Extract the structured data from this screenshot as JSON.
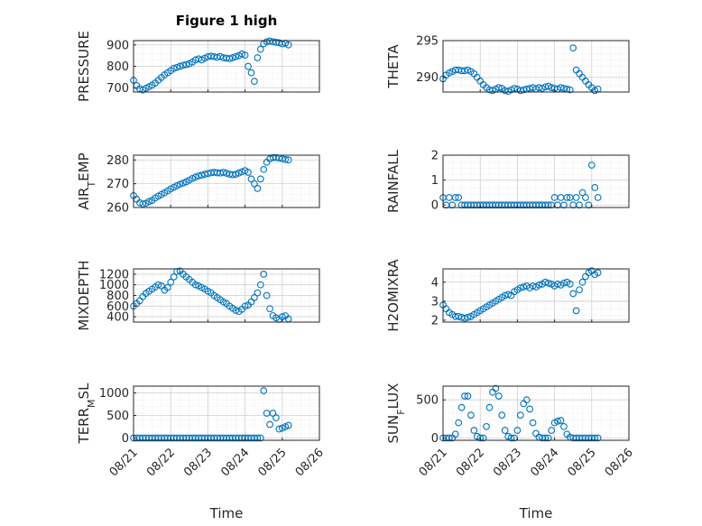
{
  "figure": {
    "title": "Figure 1 high",
    "xlabel": "Time",
    "x_ticks": [
      "08/21",
      "08/22",
      "08/23",
      "08/24",
      "08/25",
      "08/26"
    ]
  },
  "colors": {
    "marker": "#0072BD",
    "axis": "#262626",
    "grid": "#d9d9d9",
    "background": "#ffffff"
  },
  "chart_data": [
    {
      "type": "scatter",
      "ylabel_main": "PRESSURE",
      "ylabel_sub": "",
      "ylim": [
        680,
        920
      ],
      "yticks": [
        700,
        800,
        900
      ],
      "xlim": [
        "08/21",
        "08/26"
      ],
      "x": [
        "08/21 00:00",
        "08/21 02:00",
        "08/21 04:00",
        "08/21 06:00",
        "08/21 08:00",
        "08/21 10:00",
        "08/21 12:00",
        "08/21 14:00",
        "08/21 16:00",
        "08/21 18:00",
        "08/21 20:00",
        "08/21 22:00",
        "08/22 00:00",
        "08/22 02:00",
        "08/22 04:00",
        "08/22 06:00",
        "08/22 08:00",
        "08/22 10:00",
        "08/22 12:00",
        "08/22 14:00",
        "08/22 16:00",
        "08/22 18:00",
        "08/22 20:00",
        "08/22 22:00",
        "08/23 00:00",
        "08/23 02:00",
        "08/23 04:00",
        "08/23 06:00",
        "08/23 08:00",
        "08/23 10:00",
        "08/23 12:00",
        "08/23 14:00",
        "08/23 16:00",
        "08/23 18:00",
        "08/23 20:00",
        "08/23 22:00",
        "08/24 00:00",
        "08/24 02:00",
        "08/24 04:00",
        "08/24 06:00",
        "08/24 08:00",
        "08/24 10:00",
        "08/24 12:00",
        "08/24 14:00",
        "08/24 16:00",
        "08/24 18:00",
        "08/24 20:00",
        "08/24 22:00",
        "08/25 00:00",
        "08/25 02:00",
        "08/25 04:00"
      ],
      "y": [
        735,
        710,
        695,
        690,
        698,
        705,
        712,
        722,
        735,
        748,
        760,
        770,
        780,
        790,
        795,
        800,
        805,
        808,
        812,
        820,
        830,
        835,
        830,
        838,
        845,
        848,
        845,
        842,
        846,
        840,
        838,
        836,
        840,
        845,
        850,
        858,
        852,
        800,
        770,
        730,
        840,
        880,
        905,
        915,
        918,
        915,
        912,
        910,
        905,
        908,
        900
      ]
    },
    {
      "type": "scatter",
      "ylabel_main": "THETA",
      "ylabel_sub": "",
      "ylim": [
        288,
        295
      ],
      "yticks": [
        290,
        295
      ],
      "xlim": [
        "08/21",
        "08/26"
      ],
      "x": [
        "08/21 00:00",
        "08/21 02:00",
        "08/21 04:00",
        "08/21 06:00",
        "08/21 08:00",
        "08/21 10:00",
        "08/21 12:00",
        "08/21 14:00",
        "08/21 16:00",
        "08/21 18:00",
        "08/21 20:00",
        "08/21 22:00",
        "08/22 00:00",
        "08/22 02:00",
        "08/22 04:00",
        "08/22 06:00",
        "08/22 08:00",
        "08/22 10:00",
        "08/22 12:00",
        "08/22 14:00",
        "08/22 16:00",
        "08/22 18:00",
        "08/22 20:00",
        "08/22 22:00",
        "08/23 00:00",
        "08/23 02:00",
        "08/23 04:00",
        "08/23 06:00",
        "08/23 08:00",
        "08/23 10:00",
        "08/23 12:00",
        "08/23 14:00",
        "08/23 16:00",
        "08/23 18:00",
        "08/23 20:00",
        "08/23 22:00",
        "08/24 00:00",
        "08/24 02:00",
        "08/24 04:00",
        "08/24 06:00",
        "08/24 08:00",
        "08/24 10:00",
        "08/24 12:00",
        "08/24 14:00",
        "08/24 16:00",
        "08/24 18:00",
        "08/24 20:00",
        "08/24 22:00",
        "08/25 00:00",
        "08/25 02:00",
        "08/25 04:00"
      ],
      "y": [
        289.8,
        290.3,
        290.6,
        290.8,
        291,
        291,
        290.9,
        290.9,
        291,
        290.8,
        290.5,
        290,
        289.5,
        289,
        288.6,
        288.3,
        288.2,
        288.4,
        288.6,
        288.5,
        288.2,
        288.1,
        288.3,
        288.5,
        288.4,
        288.2,
        288.3,
        288.4,
        288.5,
        288.6,
        288.4,
        288.6,
        288.5,
        288.7,
        288.8,
        288.6,
        288.5,
        288.4,
        288.6,
        288.5,
        288.4,
        288.3,
        294,
        291,
        290.5,
        290,
        289.5,
        289,
        288.6,
        288.2,
        288.4
      ]
    },
    {
      "type": "scatter",
      "ylabel_main": "AIR",
      "ylabel_sub": "T",
      "ylabel_rest": "EMP",
      "ylim": [
        260,
        282
      ],
      "yticks": [
        260,
        270,
        280
      ],
      "xlim": [
        "08/21",
        "08/26"
      ],
      "x": [
        "08/21 00:00",
        "08/21 02:00",
        "08/21 04:00",
        "08/21 06:00",
        "08/21 08:00",
        "08/21 10:00",
        "08/21 12:00",
        "08/21 14:00",
        "08/21 16:00",
        "08/21 18:00",
        "08/21 20:00",
        "08/21 22:00",
        "08/22 00:00",
        "08/22 02:00",
        "08/22 04:00",
        "08/22 06:00",
        "08/22 08:00",
        "08/22 10:00",
        "08/22 12:00",
        "08/22 14:00",
        "08/22 16:00",
        "08/22 18:00",
        "08/22 20:00",
        "08/22 22:00",
        "08/23 00:00",
        "08/23 02:00",
        "08/23 04:00",
        "08/23 06:00",
        "08/23 08:00",
        "08/23 10:00",
        "08/23 12:00",
        "08/23 14:00",
        "08/23 16:00",
        "08/23 18:00",
        "08/23 20:00",
        "08/23 22:00",
        "08/24 00:00",
        "08/24 02:00",
        "08/24 04:00",
        "08/24 06:00",
        "08/24 08:00",
        "08/24 10:00",
        "08/24 12:00",
        "08/24 14:00",
        "08/24 16:00",
        "08/24 18:00",
        "08/24 20:00",
        "08/24 22:00",
        "08/25 00:00",
        "08/25 02:00",
        "08/25 04:00"
      ],
      "y": [
        265,
        263.5,
        262,
        261.5,
        261.8,
        262.5,
        263,
        264,
        264.8,
        265.5,
        266.2,
        267,
        267.8,
        268.5,
        269.2,
        269.8,
        270.3,
        270.8,
        271.5,
        272.2,
        272.8,
        273.3,
        273.6,
        274,
        274.3,
        274.6,
        274.8,
        274.6,
        274.5,
        274.8,
        274.4,
        274,
        273.8,
        274,
        274.5,
        275,
        275.5,
        274.8,
        272,
        270,
        268,
        272,
        276,
        279,
        280.5,
        281,
        281,
        280.8,
        280.5,
        280.2,
        280
      ]
    },
    {
      "type": "scatter",
      "ylabel_main": "RAINFALL",
      "ylabel_sub": "",
      "ylim": [
        -0.1,
        2
      ],
      "yticks": [
        0,
        1,
        2
      ],
      "xlim": [
        "08/21",
        "08/26"
      ],
      "x": [
        "08/21 00:00",
        "08/21 02:00",
        "08/21 04:00",
        "08/21 06:00",
        "08/21 08:00",
        "08/21 10:00",
        "08/21 12:00",
        "08/21 14:00",
        "08/21 16:00",
        "08/21 18:00",
        "08/21 20:00",
        "08/21 22:00",
        "08/22 00:00",
        "08/22 02:00",
        "08/22 04:00",
        "08/22 06:00",
        "08/22 08:00",
        "08/22 10:00",
        "08/22 12:00",
        "08/22 14:00",
        "08/22 16:00",
        "08/22 18:00",
        "08/22 20:00",
        "08/22 22:00",
        "08/23 00:00",
        "08/23 02:00",
        "08/23 04:00",
        "08/23 06:00",
        "08/23 08:00",
        "08/23 10:00",
        "08/23 12:00",
        "08/23 14:00",
        "08/23 16:00",
        "08/23 18:00",
        "08/23 20:00",
        "08/23 22:00",
        "08/24 00:00",
        "08/24 02:00",
        "08/24 04:00",
        "08/24 06:00",
        "08/24 08:00",
        "08/24 10:00",
        "08/24 12:00",
        "08/24 14:00",
        "08/24 16:00",
        "08/24 18:00",
        "08/24 20:00",
        "08/24 22:00",
        "08/25 00:00",
        "08/25 02:00",
        "08/25 04:00"
      ],
      "y": [
        0.3,
        0,
        0.3,
        0,
        0.3,
        0.3,
        0,
        0,
        0,
        0,
        0,
        0,
        0,
        0,
        0,
        0,
        0,
        0,
        0,
        0,
        0,
        0,
        0,
        0,
        0,
        0,
        0,
        0,
        0,
        0,
        0,
        0,
        0,
        0,
        0,
        0,
        0.3,
        0,
        0.3,
        0,
        0.3,
        0.3,
        0,
        0.3,
        0,
        0.5,
        0.3,
        0,
        1.6,
        0.7,
        0.3
      ]
    },
    {
      "type": "scatter",
      "ylabel_main": "MIXDEPTH",
      "ylabel_sub": "",
      "ylim": [
        300,
        1300
      ],
      "yticks": [
        400,
        600,
        800,
        1000,
        1200
      ],
      "xlim": [
        "08/21",
        "08/26"
      ],
      "x": [
        "08/21 00:00",
        "08/21 02:00",
        "08/21 04:00",
        "08/21 06:00",
        "08/21 08:00",
        "08/21 10:00",
        "08/21 12:00",
        "08/21 14:00",
        "08/21 16:00",
        "08/21 18:00",
        "08/21 20:00",
        "08/21 22:00",
        "08/22 00:00",
        "08/22 02:00",
        "08/22 04:00",
        "08/22 06:00",
        "08/22 08:00",
        "08/22 10:00",
        "08/22 12:00",
        "08/22 14:00",
        "08/22 16:00",
        "08/22 18:00",
        "08/22 20:00",
        "08/22 22:00",
        "08/23 00:00",
        "08/23 02:00",
        "08/23 04:00",
        "08/23 06:00",
        "08/23 08:00",
        "08/23 10:00",
        "08/23 12:00",
        "08/23 14:00",
        "08/23 16:00",
        "08/23 18:00",
        "08/23 20:00",
        "08/23 22:00",
        "08/24 00:00",
        "08/24 02:00",
        "08/24 04:00",
        "08/24 06:00",
        "08/24 08:00",
        "08/24 10:00",
        "08/24 12:00",
        "08/24 14:00",
        "08/24 16:00",
        "08/24 18:00",
        "08/24 20:00",
        "08/24 22:00",
        "08/25 00:00",
        "08/25 02:00",
        "08/25 04:00"
      ],
      "y": [
        600,
        650,
        700,
        780,
        840,
        880,
        920,
        960,
        1000,
        980,
        900,
        950,
        1050,
        1150,
        1250,
        1260,
        1200,
        1150,
        1100,
        1050,
        1000,
        980,
        950,
        920,
        880,
        850,
        800,
        760,
        720,
        680,
        650,
        600,
        560,
        520,
        500,
        540,
        600,
        620,
        680,
        760,
        850,
        1000,
        1200,
        800,
        550,
        420,
        380,
        350,
        400,
        420,
        360
      ]
    },
    {
      "type": "scatter",
      "ylabel_main": "H2OMIXRA",
      "ylabel_sub": "",
      "ylim": [
        1.9,
        4.7
      ],
      "yticks": [
        2,
        3,
        4
      ],
      "xlim": [
        "08/21",
        "08/26"
      ],
      "x": [
        "08/21 00:00",
        "08/21 02:00",
        "08/21 04:00",
        "08/21 06:00",
        "08/21 08:00",
        "08/21 10:00",
        "08/21 12:00",
        "08/21 14:00",
        "08/21 16:00",
        "08/21 18:00",
        "08/21 20:00",
        "08/21 22:00",
        "08/22 00:00",
        "08/22 02:00",
        "08/22 04:00",
        "08/22 06:00",
        "08/22 08:00",
        "08/22 10:00",
        "08/22 12:00",
        "08/22 14:00",
        "08/22 16:00",
        "08/22 18:00",
        "08/22 20:00",
        "08/22 22:00",
        "08/23 00:00",
        "08/23 02:00",
        "08/23 04:00",
        "08/23 06:00",
        "08/23 08:00",
        "08/23 10:00",
        "08/23 12:00",
        "08/23 14:00",
        "08/23 16:00",
        "08/23 18:00",
        "08/23 20:00",
        "08/23 22:00",
        "08/24 00:00",
        "08/24 02:00",
        "08/24 04:00",
        "08/24 06:00",
        "08/24 08:00",
        "08/24 10:00",
        "08/24 12:00",
        "08/24 14:00",
        "08/24 16:00",
        "08/24 18:00",
        "08/24 20:00",
        "08/24 22:00",
        "08/25 00:00",
        "08/25 02:00",
        "08/25 04:00"
      ],
      "y": [
        2.8,
        2.6,
        2.4,
        2.3,
        2.2,
        2.2,
        2.15,
        2.1,
        2.15,
        2.2,
        2.3,
        2.4,
        2.5,
        2.6,
        2.7,
        2.8,
        2.9,
        3,
        3.1,
        3.2,
        3.3,
        3.35,
        3.3,
        3.5,
        3.6,
        3.7,
        3.75,
        3.8,
        3.7,
        3.8,
        3.75,
        3.85,
        3.9,
        4,
        3.95,
        3.9,
        3.8,
        3.9,
        3.85,
        3.95,
        4,
        3.9,
        3.4,
        2.5,
        3.6,
        4,
        4.3,
        4.5,
        4.6,
        4.4,
        4.5
      ]
    },
    {
      "type": "scatter",
      "ylabel_main": "TERR",
      "ylabel_sub": "M",
      "ylabel_rest": "SL",
      "ylim": [
        -50,
        1150
      ],
      "yticks": [
        0,
        500,
        1000
      ],
      "xlim": [
        "08/21",
        "08/26"
      ],
      "x": [
        "08/21 00:00",
        "08/21 02:00",
        "08/21 04:00",
        "08/21 06:00",
        "08/21 08:00",
        "08/21 10:00",
        "08/21 12:00",
        "08/21 14:00",
        "08/21 16:00",
        "08/21 18:00",
        "08/21 20:00",
        "08/21 22:00",
        "08/22 00:00",
        "08/22 02:00",
        "08/22 04:00",
        "08/22 06:00",
        "08/22 08:00",
        "08/22 10:00",
        "08/22 12:00",
        "08/22 14:00",
        "08/22 16:00",
        "08/22 18:00",
        "08/22 20:00",
        "08/22 22:00",
        "08/23 00:00",
        "08/23 02:00",
        "08/23 04:00",
        "08/23 06:00",
        "08/23 08:00",
        "08/23 10:00",
        "08/23 12:00",
        "08/23 14:00",
        "08/23 16:00",
        "08/23 18:00",
        "08/23 20:00",
        "08/23 22:00",
        "08/24 00:00",
        "08/24 02:00",
        "08/24 04:00",
        "08/24 06:00",
        "08/24 08:00",
        "08/24 10:00",
        "08/24 12:00",
        "08/24 14:00",
        "08/24 16:00",
        "08/24 18:00",
        "08/24 20:00",
        "08/24 22:00",
        "08/25 00:00",
        "08/25 02:00",
        "08/25 04:00"
      ],
      "y": [
        0,
        0,
        0,
        0,
        0,
        0,
        0,
        0,
        0,
        0,
        0,
        0,
        0,
        0,
        0,
        0,
        0,
        0,
        0,
        0,
        0,
        0,
        0,
        0,
        0,
        0,
        0,
        0,
        0,
        0,
        0,
        0,
        0,
        0,
        0,
        0,
        0,
        0,
        0,
        0,
        0,
        0,
        1050,
        550,
        300,
        550,
        450,
        200,
        220,
        250,
        280
      ]
    },
    {
      "type": "scatter",
      "ylabel_main": "SUN",
      "ylabel_sub": "F",
      "ylabel_rest": "LUX",
      "ylim": [
        -30,
        680
      ],
      "yticks": [
        0,
        500
      ],
      "xlim": [
        "08/21",
        "08/26"
      ],
      "x": [
        "08/21 00:00",
        "08/21 02:00",
        "08/21 04:00",
        "08/21 06:00",
        "08/21 08:00",
        "08/21 10:00",
        "08/21 12:00",
        "08/21 14:00",
        "08/21 16:00",
        "08/21 18:00",
        "08/21 20:00",
        "08/21 22:00",
        "08/22 00:00",
        "08/22 02:00",
        "08/22 04:00",
        "08/22 06:00",
        "08/22 08:00",
        "08/22 10:00",
        "08/22 12:00",
        "08/22 14:00",
        "08/22 16:00",
        "08/22 18:00",
        "08/22 20:00",
        "08/22 22:00",
        "08/23 00:00",
        "08/23 02:00",
        "08/23 04:00",
        "08/23 06:00",
        "08/23 08:00",
        "08/23 10:00",
        "08/23 12:00",
        "08/23 14:00",
        "08/23 16:00",
        "08/23 18:00",
        "08/23 20:00",
        "08/23 22:00",
        "08/24 00:00",
        "08/24 02:00",
        "08/24 04:00",
        "08/24 06:00",
        "08/24 08:00",
        "08/24 10:00",
        "08/24 12:00",
        "08/24 14:00",
        "08/24 16:00",
        "08/24 18:00",
        "08/24 20:00",
        "08/24 22:00",
        "08/25 00:00",
        "08/25 02:00",
        "08/25 04:00"
      ],
      "y": [
        0,
        0,
        0,
        0,
        50,
        200,
        400,
        550,
        550,
        300,
        100,
        20,
        0,
        0,
        150,
        400,
        600,
        650,
        550,
        300,
        100,
        20,
        0,
        0,
        100,
        300,
        450,
        500,
        380,
        200,
        60,
        10,
        0,
        0,
        0,
        100,
        200,
        220,
        230,
        150,
        50,
        10,
        0,
        0,
        0,
        0,
        0,
        0,
        0,
        0,
        0
      ]
    }
  ]
}
